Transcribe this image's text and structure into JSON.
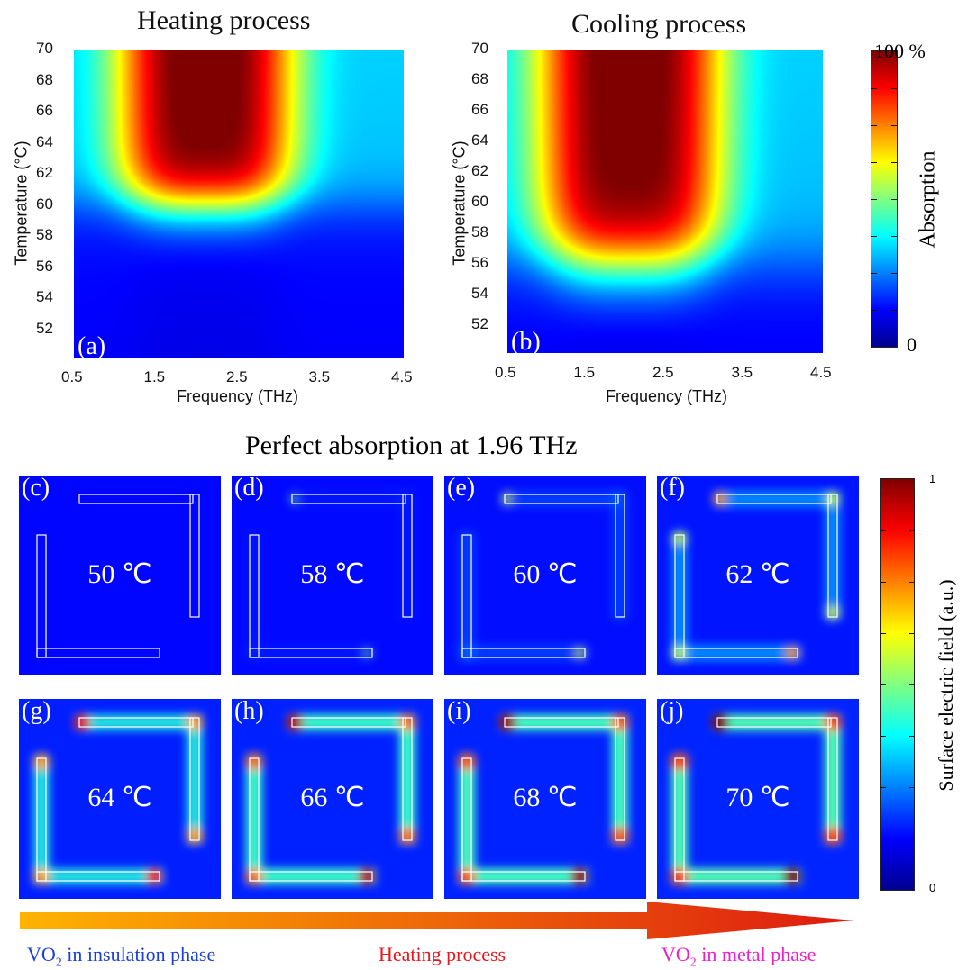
{
  "colors": {
    "jet": [
      "#00008f",
      "#0000ff",
      "#0080ff",
      "#00ffff",
      "#80ff80",
      "#ffff00",
      "#ff8000",
      "#ff0000",
      "#800000"
    ],
    "insulation_text": "#1a3fd6",
    "heating_text": "#e8151b",
    "metal_text": "#ee1ecf",
    "arrow_start": "#ffb300",
    "arrow_end": "#dd1a10"
  },
  "chart_data": [
    {
      "type": "heatmap",
      "panel": "(a)",
      "title": "Heating process",
      "xlabel": "Frequency (THz)",
      "ylabel": "Temperature (°C)",
      "xticks": [
        "0.5",
        "1.5",
        "2.5",
        "3.5",
        "4.5"
      ],
      "yticks": [
        "52",
        "54",
        "56",
        "58",
        "60",
        "62",
        "64",
        "66",
        "68",
        "70"
      ],
      "xlim": [
        0.5,
        4.5
      ],
      "ylim": [
        50.2,
        70
      ],
      "peak_frequency": 2.1,
      "upper_band_half_width": 1.1,
      "lower_band_half_width": 0.9,
      "transition_temperature": 60,
      "transition_width": 1.0
    },
    {
      "type": "heatmap",
      "panel": "(b)",
      "title": "Cooling process",
      "xlabel": "Frequency (THz)",
      "ylabel": "Temperature (°C)",
      "xticks": [
        "0.5",
        "1.5",
        "2.5",
        "3.5",
        "4.5"
      ],
      "yticks": [
        "52",
        "54",
        "56",
        "58",
        "60",
        "62",
        "64",
        "66",
        "68",
        "70"
      ],
      "xlim": [
        0.5,
        4.5
      ],
      "ylim": [
        50.2,
        70
      ],
      "peak_frequency": 2.05,
      "upper_band_half_width": 1.2,
      "lower_band_half_width": 0.95,
      "transition_temperature": 56,
      "transition_width": 1.3
    }
  ],
  "colorbar_absorption": {
    "label": "Absorption",
    "max_label": "100 %",
    "min_label": "0"
  },
  "field_section": {
    "title": "Perfect absorption at 1.96 THz",
    "colorbar_label": "Surface electric field (a.u.)",
    "colorbar_max": "1",
    "colorbar_min": "0",
    "panels": [
      {
        "letter": "(c)",
        "temp": "50 ℃",
        "intensity": 0.0
      },
      {
        "letter": "(d)",
        "temp": "58 ℃",
        "intensity": 0.08
      },
      {
        "letter": "(e)",
        "temp": "60 ℃",
        "intensity": 0.25
      },
      {
        "letter": "(f)",
        "temp": "62 ℃",
        "intensity": 0.5
      },
      {
        "letter": "(g)",
        "temp": "64 ℃",
        "intensity": 0.8
      },
      {
        "letter": "(h)",
        "temp": "66 ℃",
        "intensity": 0.9
      },
      {
        "letter": "(i)",
        "temp": "68 ℃",
        "intensity": 0.95
      },
      {
        "letter": "(j)",
        "temp": "70 ℃",
        "intensity": 1.0
      }
    ]
  },
  "bottom_labels": {
    "insulation_prefix": "VO",
    "insulation_sub": "2",
    "insulation_suffix": " in insulation phase",
    "heating": "Heating process",
    "metal_prefix": "VO",
    "metal_sub": "2",
    "metal_suffix": " in metal phase"
  }
}
